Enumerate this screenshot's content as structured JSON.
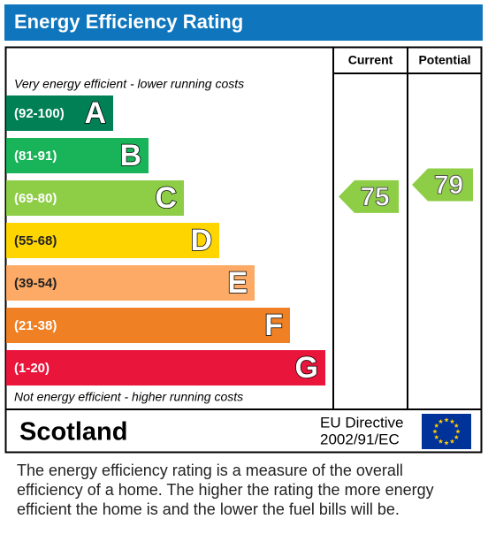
{
  "title": "Energy Efficiency Rating",
  "headers": [
    "Current",
    "Potential"
  ],
  "top_note": "Very energy efficient - lower running costs",
  "bottom_note": "Not energy efficient - higher running costs",
  "bands": [
    {
      "range": "(92-100)",
      "letter": "A",
      "color": "#008054"
    },
    {
      "range": "(81-91)",
      "letter": "B",
      "color": "#19b459"
    },
    {
      "range": "(69-80)",
      "letter": "C",
      "color": "#8dce46"
    },
    {
      "range": "(55-68)",
      "letter": "D",
      "color": "#ffd500"
    },
    {
      "range": "(39-54)",
      "letter": "E",
      "color": "#fcaa65"
    },
    {
      "range": "(21-38)",
      "letter": "F",
      "color": "#ef8023"
    },
    {
      "range": "(1-20)",
      "letter": "G",
      "color": "#e9153b"
    }
  ],
  "current": 75,
  "potential": 79,
  "region": "Scotland",
  "directive": [
    "EU Directive",
    "2002/91/EC"
  ],
  "description": [
    "The energy efficiency rating is a measure of the overall",
    "efficiency of a home.  The higher the rating the more energy",
    "efficient the home is and the lower the fuel bills will be."
  ]
}
